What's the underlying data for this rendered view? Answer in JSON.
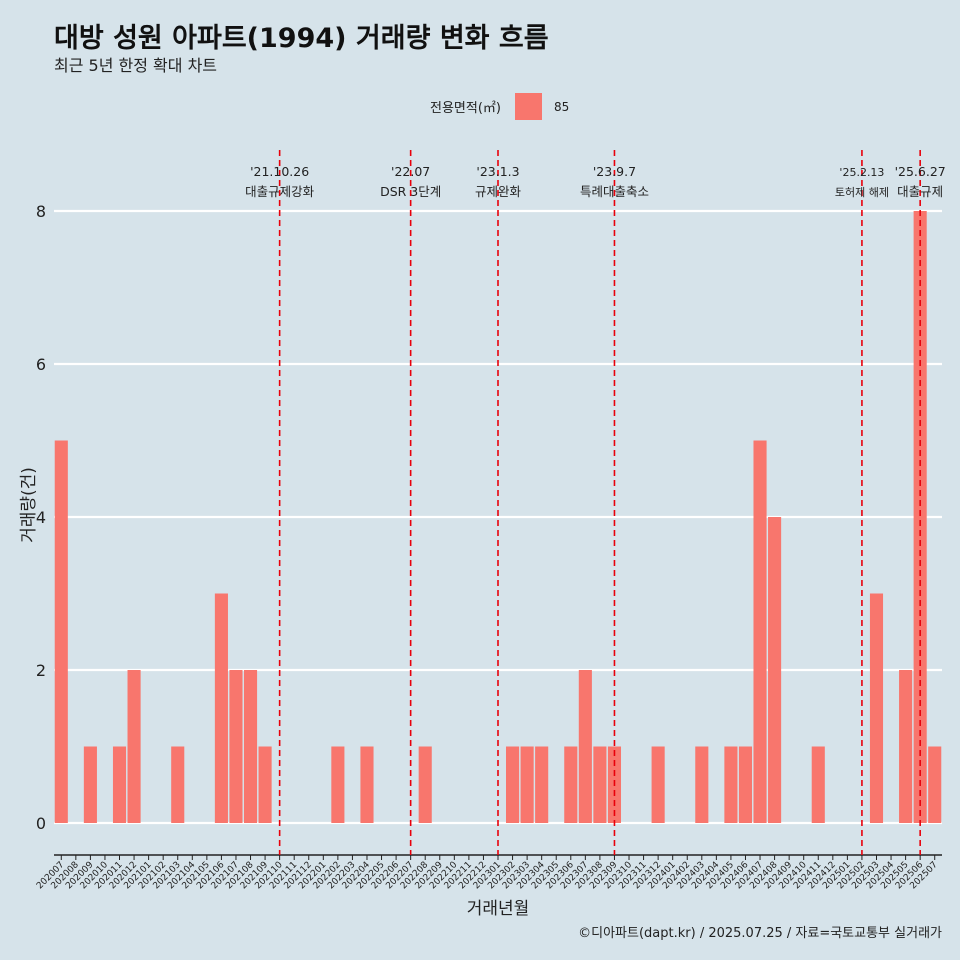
{
  "header": {
    "title": "대방 성원 아파트(1994) 거래량 변화 흐름",
    "subtitle": "최근 5년 한정 확대 차트"
  },
  "legend": {
    "title": "전용면적(㎡)",
    "label": "85",
    "color": "#f8766d"
  },
  "caption": "©디아파트(dapt.kr) / 2025.07.25 / 자료=국토교통부 실거래가",
  "chart_data": {
    "type": "bar",
    "xlabel": "거래년월",
    "ylabel": "거래량(건)",
    "ylim": [
      0,
      8
    ],
    "yticks": [
      0,
      2,
      4,
      6,
      8
    ],
    "grid": true,
    "legend_position": "top",
    "categories": [
      "202007",
      "202008",
      "202009",
      "202010",
      "202011",
      "202012",
      "202101",
      "202102",
      "202103",
      "202104",
      "202105",
      "202106",
      "202107",
      "202108",
      "202109",
      "202110",
      "202111",
      "202112",
      "202201",
      "202202",
      "202203",
      "202204",
      "202205",
      "202206",
      "202207",
      "202208",
      "202209",
      "202210",
      "202211",
      "202212",
      "202301",
      "202302",
      "202303",
      "202304",
      "202305",
      "202306",
      "202307",
      "202308",
      "202309",
      "202310",
      "202311",
      "202312",
      "202401",
      "202402",
      "202403",
      "202404",
      "202405",
      "202406",
      "202407",
      "202408",
      "202409",
      "202410",
      "202411",
      "202412",
      "202501",
      "202502",
      "202503",
      "202504",
      "202505",
      "202506",
      "202507"
    ],
    "series": [
      {
        "name": "85",
        "values": [
          5,
          0,
          1,
          0,
          1,
          2,
          0,
          0,
          1,
          0,
          0,
          3,
          2,
          2,
          1,
          0,
          0,
          0,
          0,
          1,
          0,
          1,
          0,
          0,
          0,
          1,
          0,
          0,
          0,
          0,
          0,
          1,
          1,
          1,
          0,
          1,
          2,
          1,
          1,
          0,
          0,
          1,
          0,
          0,
          1,
          0,
          1,
          1,
          5,
          4,
          0,
          0,
          1,
          0,
          0,
          0,
          3,
          0,
          2,
          8,
          1
        ]
      }
    ],
    "annotations": [
      {
        "date": "'21.10.26",
        "label": "대출규제강화",
        "at": "202110"
      },
      {
        "date": "'22.07",
        "label": "DSR 3단계",
        "at": "202207"
      },
      {
        "date": "'23.1.3",
        "label": "규제완화",
        "at": "202301"
      },
      {
        "date": "'23.9.7",
        "label": "특례대출축소",
        "at": "202309"
      },
      {
        "date": "'25.2.13",
        "label": "토허제 해제",
        "at": "202502"
      },
      {
        "date": "'25.6.27",
        "label": "대출규제",
        "at": "202506"
      }
    ],
    "colors": {
      "bar": "#f8766d",
      "vline": "#e8000b",
      "grid": "#ffffff"
    }
  }
}
